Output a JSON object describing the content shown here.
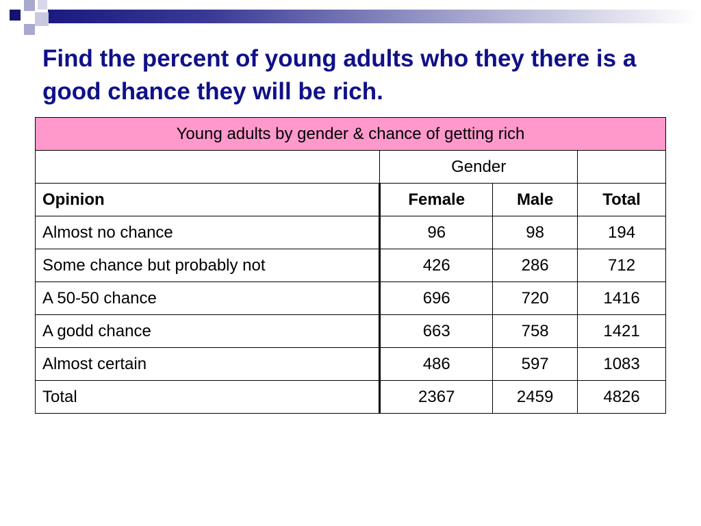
{
  "title": "Find the percent of young adults who they there is a good chance they will be rich.",
  "table": {
    "caption": "Young adults by gender & chance of getting rich",
    "group_header": "Gender",
    "columns": [
      "Opinion",
      "Female",
      "Male",
      "Total"
    ],
    "rows": [
      [
        "Almost no chance",
        "96",
        "98",
        "194"
      ],
      [
        "Some chance but probably not",
        "426",
        "286",
        "712"
      ],
      [
        "A 50-50 chance",
        "696",
        "720",
        "1416"
      ],
      [
        "A godd chance",
        "663",
        "758",
        "1421"
      ],
      [
        "Almost certain",
        "486",
        "597",
        "1083"
      ],
      [
        "Total",
        "2367",
        "2459",
        "4826"
      ]
    ]
  }
}
